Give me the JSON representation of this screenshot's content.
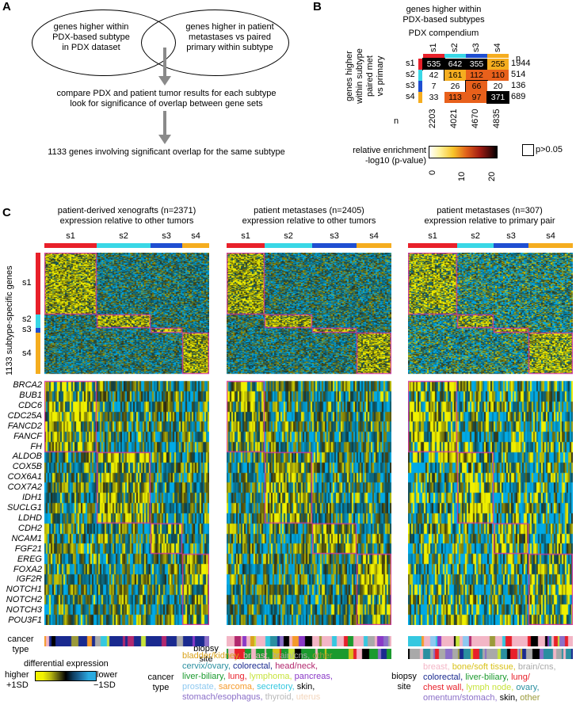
{
  "panels": {
    "a": "A",
    "b": "B",
    "c": "C"
  },
  "panelA": {
    "ellipse_left": "genes higher within PDX-based subtype in PDX dataset",
    "ellipse_left_lines": [
      "genes higher within",
      "PDX-based subtype",
      "in PDX dataset"
    ],
    "ellipse_right_lines": [
      "genes higher in patient",
      "metastases vs paired",
      "primary within subtype"
    ],
    "step2_lines": [
      "compare PDX and patient tumor results for each subtype",
      "look for significance of overlap between gene sets"
    ],
    "step3": "1133 genes involving significant overlap for the same subtype"
  },
  "panelB": {
    "title_lines": [
      "genes higher within",
      "PDX-based subtypes",
      "PDX compendium"
    ],
    "row_title_lines": [
      "genes higher",
      "within subtype",
      "paired met",
      "vs primary"
    ],
    "col_labels": [
      "s1",
      "s2",
      "s3",
      "s4"
    ],
    "row_labels": [
      "s1",
      "s2",
      "s3",
      "s4"
    ],
    "n_label": "n",
    "row_n": [
      "1944",
      "514",
      "136",
      "689"
    ],
    "col_n": [
      "2203",
      "4021",
      "4670",
      "4835"
    ],
    "matrix": [
      [
        535,
        642,
        355,
        255
      ],
      [
        42,
        161,
        112,
        110
      ],
      [
        7,
        26,
        66,
        20
      ],
      [
        33,
        113,
        97,
        371
      ]
    ],
    "enrich_label_lines": [
      "relative enrichment",
      "-log10 (p-value)"
    ],
    "scale_ticks": [
      "0",
      "10",
      "20"
    ],
    "pval_label": "p>0.05",
    "colors": {
      "s1": "#e8202a",
      "s2": "#39d7e6",
      "s3": "#1f4fd1",
      "s4": "#f5ad1f"
    }
  },
  "panelC": {
    "heatmaps": [
      {
        "title_lines": [
          "patient-derived xenografts (n=2371)",
          "expression relative to other tumors"
        ]
      },
      {
        "title_lines": [
          "patient metastases (n=2405)",
          "expression relative to other tumors"
        ]
      },
      {
        "title_lines": [
          "patient metastases (n=307)",
          "expression relative to primary pair"
        ]
      }
    ],
    "subtypes": [
      "s1",
      "s2",
      "s3",
      "s4"
    ],
    "gene_axis_label": "1133 subtype-specific genes",
    "genes": [
      "BRCA2",
      "BUB1",
      "CDC6",
      "CDC25A",
      "FANCD2",
      "FANCF",
      "FH",
      "ALDOB",
      "COX5B",
      "COX6A1",
      "COX7A2",
      "IDH1",
      "SUCLG1",
      "LDHD",
      "CDH2",
      "NCAM1",
      "FGF21",
      "EREG",
      "FOXA2",
      "IGF2R",
      "NOTCH1",
      "NOTCH2",
      "NOTCH3",
      "POU3F1"
    ],
    "cancer_type_label_lines": [
      "cancer",
      "type"
    ],
    "biopsy_site_label_lines": [
      "biopsy",
      "site"
    ]
  },
  "legend": {
    "title": "differential expression",
    "higher": "higher",
    "lower": "lower",
    "plus": "+1SD",
    "minus": "−1SD",
    "cancer_type_label_lines": [
      "cancer",
      "type"
    ],
    "cancer_types": [
      [
        {
          "t": "bladder/kidney, ",
          "c": "#d9a21b"
        },
        {
          "t": "breast, ",
          "c": "#f3b6c6"
        },
        {
          "t": "brain/cns, ",
          "c": "#a9a9a9"
        },
        {
          "t": "other",
          "c": "#9b9a3a"
        }
      ],
      [
        {
          "t": "cervix/ovary, ",
          "c": "#2a8fa0"
        },
        {
          "t": "colorectal, ",
          "c": "#1a2a8f"
        },
        {
          "t": "head/neck,",
          "c": "#b2286e"
        }
      ],
      [
        {
          "t": "liver-biliary, ",
          "c": "#1b9a2e"
        },
        {
          "t": "lung, ",
          "c": "#e8202a"
        },
        {
          "t": "lymphoma, ",
          "c": "#c7e33c"
        },
        {
          "t": "pancreas,",
          "c": "#8a39c7"
        }
      ],
      [
        {
          "t": "prostate, ",
          "c": "#8ec9f0"
        },
        {
          "t": "sarcoma, ",
          "c": "#f59a2a"
        },
        {
          "t": "secretory, ",
          "c": "#35c8e0"
        },
        {
          "t": "skin,",
          "c": "#000000"
        }
      ],
      [
        {
          "t": "stomach/esophagus, ",
          "c": "#8b6fc8"
        },
        {
          "t": "thyroid, ",
          "c": "#b9b9b9"
        },
        {
          "t": "uterus",
          "c": "#f3d5bb"
        }
      ]
    ],
    "biopsy_label_lines": [
      "biopsy",
      "site"
    ],
    "biopsy_sites": [
      [
        {
          "t": "breast, ",
          "c": "#f3b6c6"
        },
        {
          "t": "bone/soft tissue, ",
          "c": "#d9c21b"
        },
        {
          "t": "brain/cns,",
          "c": "#a9a9a9"
        }
      ],
      [
        {
          "t": "colorectal, ",
          "c": "#1a2a8f"
        },
        {
          "t": "liver-biliary, ",
          "c": "#1b9a2e"
        },
        {
          "t": "lung/",
          "c": "#e8202a"
        }
      ],
      [
        {
          "t": "chest wall, ",
          "c": "#e8202a"
        },
        {
          "t": "lymph node, ",
          "c": "#c7e33c"
        },
        {
          "t": "ovary,",
          "c": "#2a8fa0"
        }
      ],
      [
        {
          "t": "omentum/stomach, ",
          "c": "#8b6fc8"
        },
        {
          "t": "skin, ",
          "c": "#000000"
        },
        {
          "t": "other",
          "c": "#9b9a3a"
        }
      ]
    ]
  }
}
